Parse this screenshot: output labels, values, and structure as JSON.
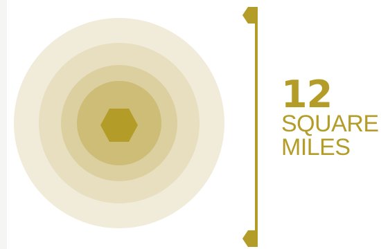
{
  "colors": {
    "accent": "#b39d28",
    "ring_outer": "#f1ebda",
    "ring_2": "#e8dfc1",
    "ring_3": "#dcd0a0",
    "ring_4": "#cdbd77",
    "hexagon": "#b39d28",
    "background": "#ffffff"
  },
  "stat": {
    "number": "12",
    "unit_line1": "SQUARE",
    "unit_line2": "MILES"
  }
}
